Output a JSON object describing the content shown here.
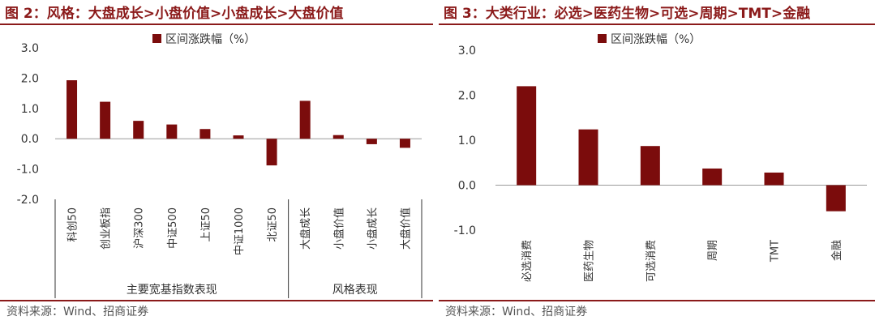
{
  "left": {
    "title": "图 2：风格：大盘成长>小盘价值>小盘成长>大盘价值",
    "source": "资料来源：Wind、招商证券",
    "chart_data": {
      "type": "bar",
      "legend": "区间涨跌幅（%）",
      "color": "#7b0c0c",
      "ylim": [
        -2.0,
        3.0
      ],
      "yticks": [
        "3.0",
        "2.0",
        "1.0",
        "0.0",
        "-1.0",
        "-2.0"
      ],
      "categories": [
        "科创50",
        "创业板指",
        "沪深300",
        "中证500",
        "上证50",
        "中证1000",
        "北证50",
        "大盘成长",
        "小盘价值",
        "小盘成长",
        "大盘价值"
      ],
      "values": [
        1.93,
        1.22,
        0.59,
        0.47,
        0.32,
        0.11,
        -0.88,
        1.25,
        0.12,
        -0.18,
        -0.3
      ],
      "groups": [
        {
          "label": "主要宽基指数表现",
          "count": 7
        },
        {
          "label": "风格表现",
          "count": 4
        }
      ]
    }
  },
  "right": {
    "title": "图 3：大类行业：必选>医药生物>可选>周期>TMT>金融",
    "source": "资料来源：Wind、招商证券",
    "chart_data": {
      "type": "bar",
      "legend": "区间涨跌幅（%）",
      "color": "#7b0c0c",
      "ylim": [
        -1.0,
        3.0
      ],
      "yticks": [
        "3.0",
        "2.0",
        "1.0",
        "0.0",
        "-1.0"
      ],
      "categories": [
        "必选消费",
        "医药生物",
        "可选消费",
        "周期",
        "TMT",
        "金融"
      ],
      "values": [
        2.2,
        1.24,
        0.87,
        0.37,
        0.28,
        -0.58
      ]
    }
  }
}
